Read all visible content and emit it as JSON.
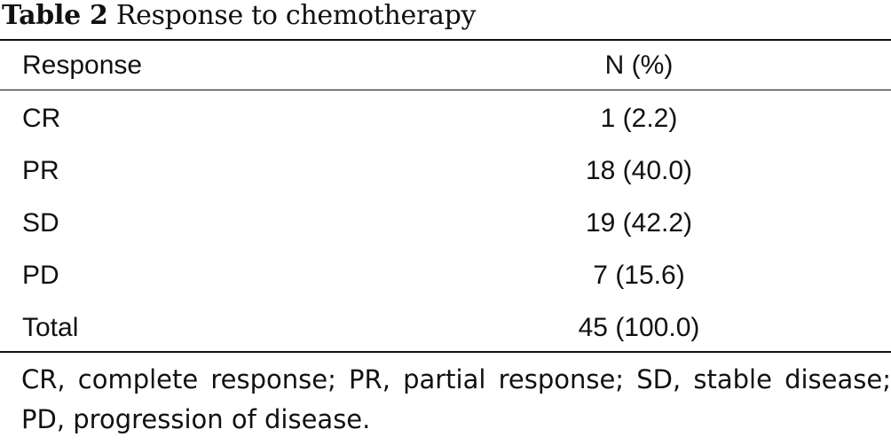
{
  "caption": {
    "label": "Table 2",
    "title": "Response to chemotherapy"
  },
  "table": {
    "headers": [
      "Response",
      "N (%)"
    ],
    "rows": [
      [
        "CR",
        "1 (2.2)"
      ],
      [
        "PR",
        "18 (40.0)"
      ],
      [
        "SD",
        "19 (42.2)"
      ],
      [
        "PD",
        "7 (15.6)"
      ],
      [
        "Total",
        "45 (100.0)"
      ]
    ]
  },
  "footnote": "CR, complete response; PR, partial response; SD, stable disease; PD, progression of disease."
}
